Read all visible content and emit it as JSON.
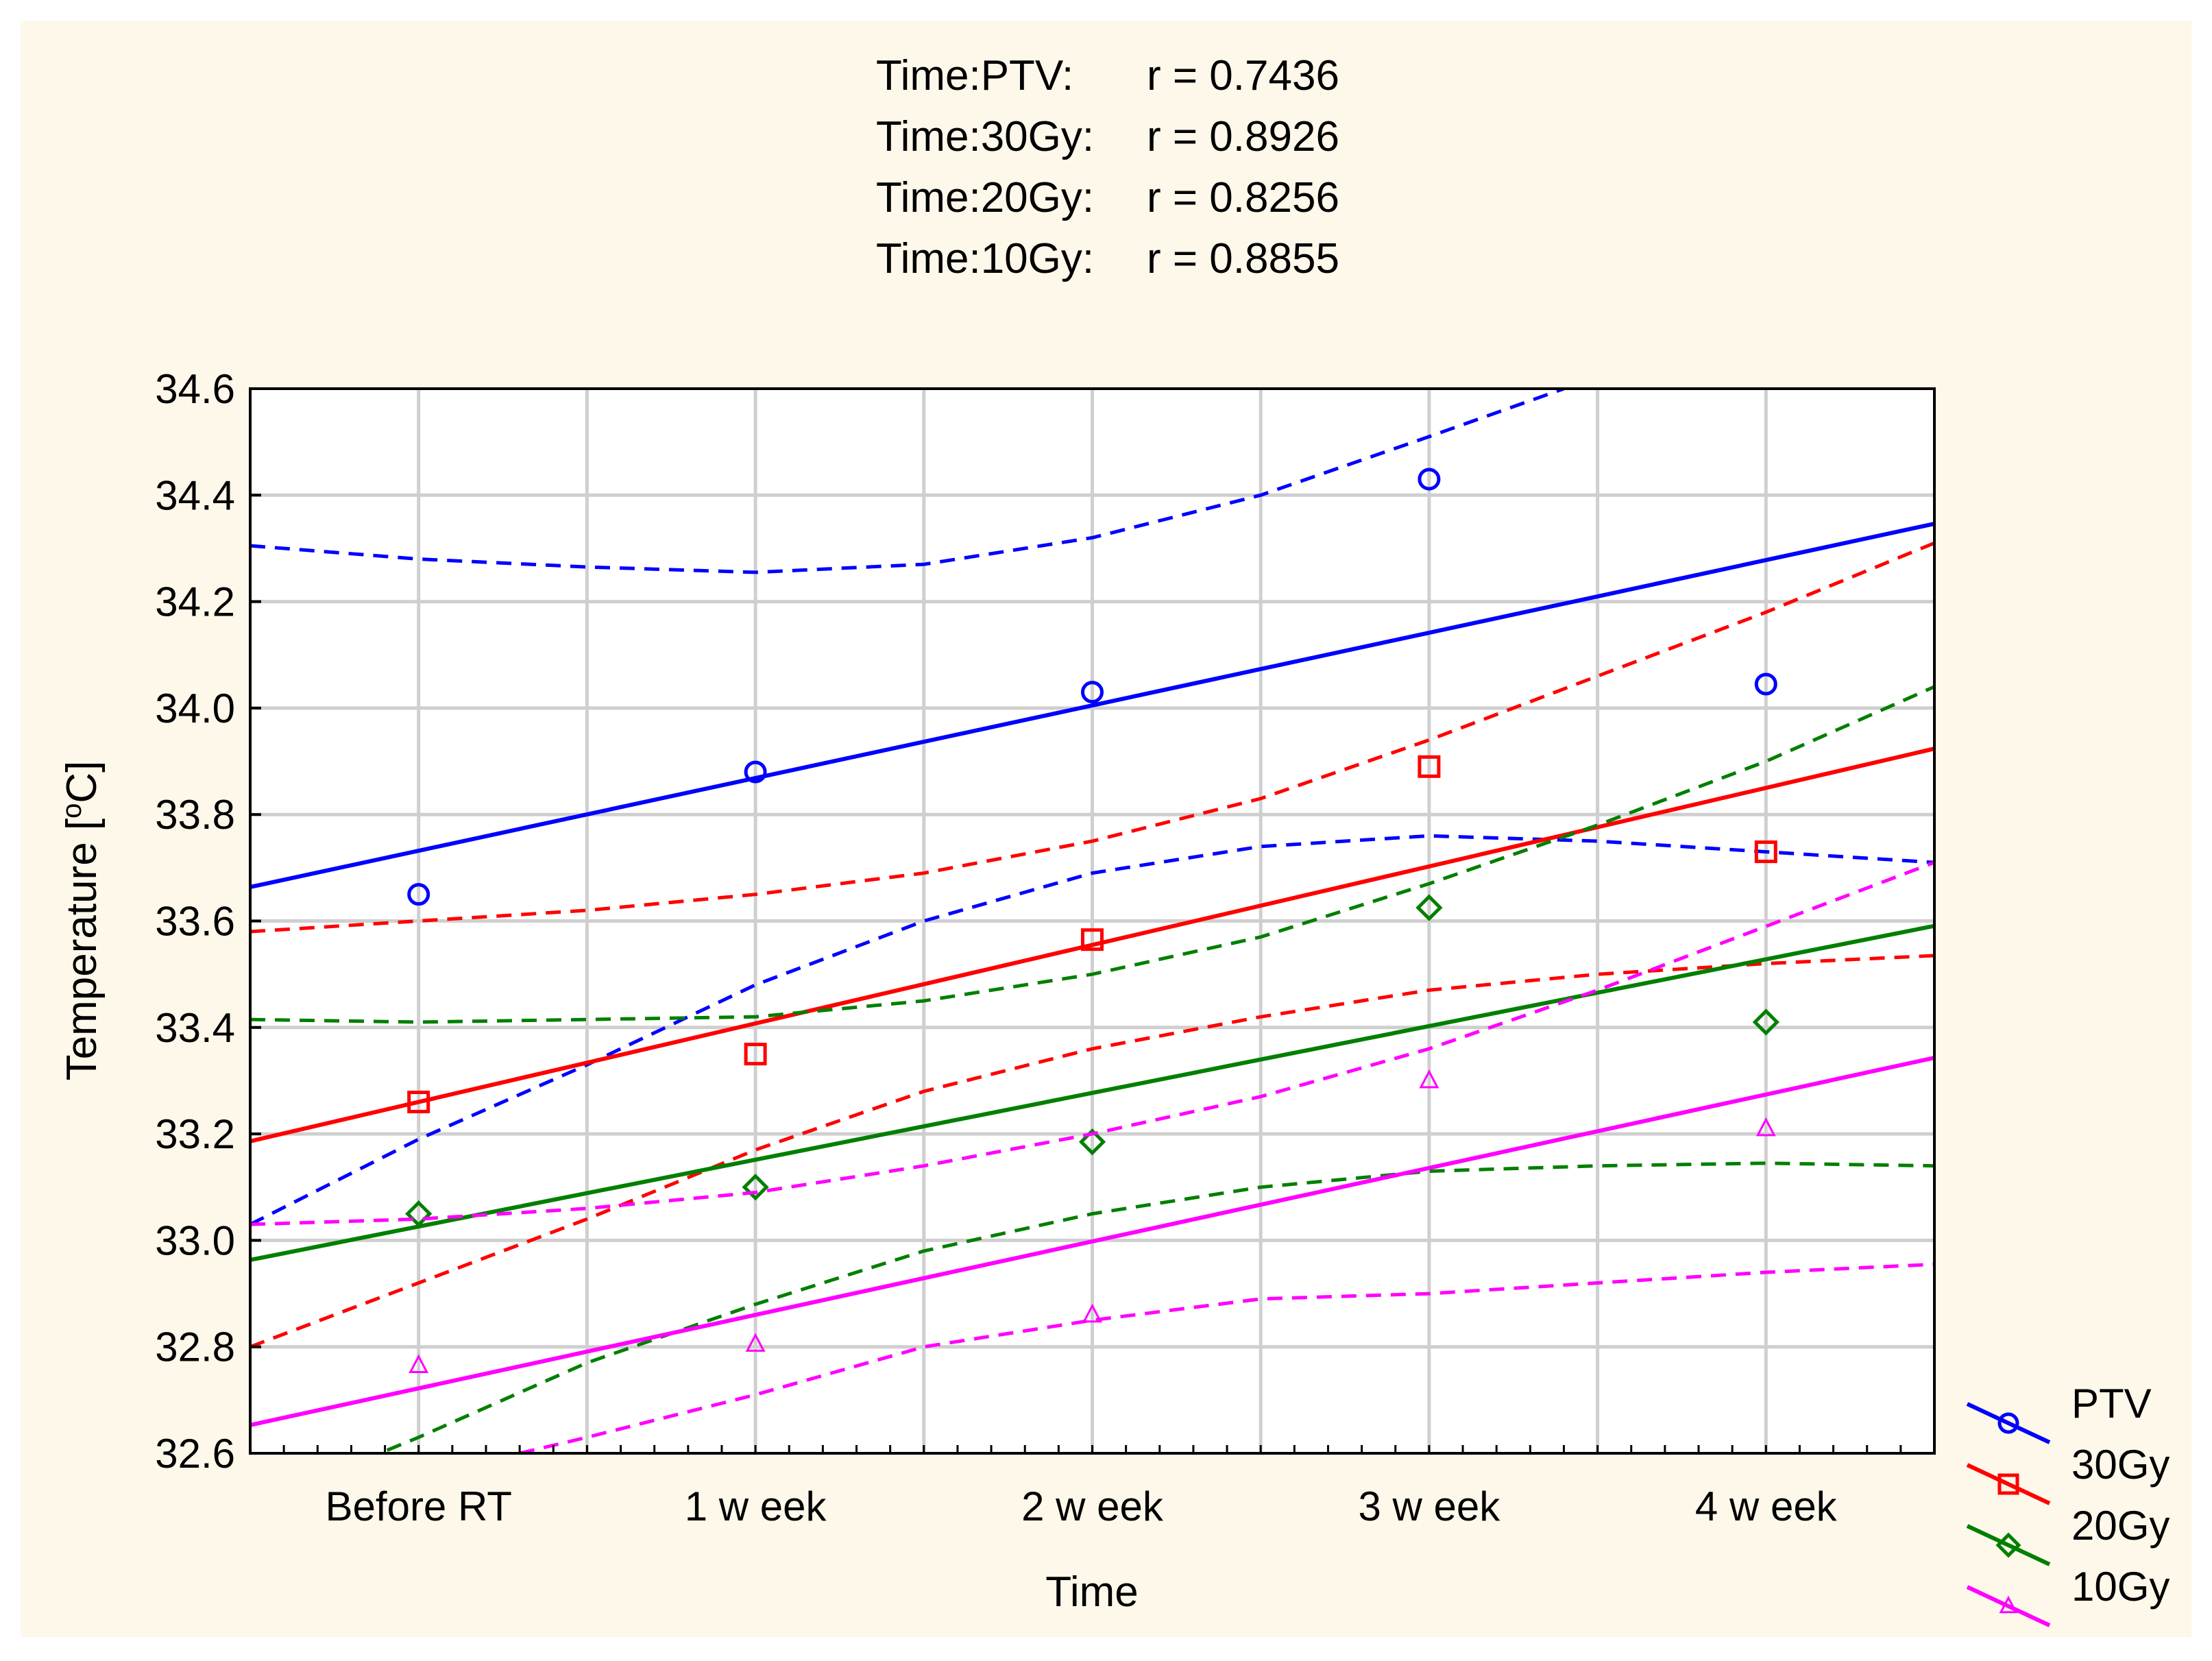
{
  "chart_data": {
    "type": "scatter",
    "title": "",
    "xlabel": "Time",
    "ylabel": "Temperature [°C]",
    "ylabel_parts": {
      "prefix": "Temperature [",
      "superscript": "o",
      "suffix": "C]"
    },
    "categories": [
      "Before RT",
      "1 w eek",
      "2 w eek",
      "3 w eek",
      "4 w eek"
    ],
    "ylim": [
      32.6,
      34.6
    ],
    "yticks": [
      "32.6",
      "32.8",
      "33.0",
      "33.2",
      "33.4",
      "33.6",
      "33.8",
      "34.0",
      "34.2",
      "34.4",
      "34.6"
    ],
    "xlim": [
      0.5,
      5.5
    ],
    "grid": true,
    "legend_position": "bottom-right",
    "annotations": [
      {
        "label": "Time:PTV:",
        "value": "r = 0.7436"
      },
      {
        "label": "Time:30Gy:",
        "value": "r = 0.8926"
      },
      {
        "label": "Time:20Gy:",
        "value": "r = 0.8256"
      },
      {
        "label": "Time:10Gy:",
        "value": "r = 0.8855"
      }
    ],
    "series": [
      {
        "name": "PTV",
        "color": "#0000ff",
        "marker": "circle",
        "values": [
          33.65,
          33.88,
          34.03,
          34.43,
          34.045
        ],
        "fit": {
          "intercept": 33.5955,
          "slope": 0.1365
        },
        "ci_lower": [
          [
            0.5,
            33.03
          ],
          [
            1.0,
            33.19
          ],
          [
            1.5,
            33.33
          ],
          [
            2.0,
            33.48
          ],
          [
            2.5,
            33.6
          ],
          [
            3.0,
            33.69
          ],
          [
            3.5,
            33.74
          ],
          [
            4.0,
            33.76
          ],
          [
            4.5,
            33.75
          ],
          [
            5.0,
            33.73
          ],
          [
            5.5,
            33.71
          ]
        ],
        "ci_upper": [
          [
            0.5,
            34.305
          ],
          [
            1.0,
            34.28
          ],
          [
            1.5,
            34.265
          ],
          [
            2.0,
            34.255
          ],
          [
            2.5,
            34.27
          ],
          [
            3.0,
            34.32
          ],
          [
            3.5,
            34.4
          ],
          [
            4.0,
            34.51
          ],
          [
            4.4,
            34.6
          ]
        ]
      },
      {
        "name": "30Gy",
        "color": "#ff0000",
        "marker": "square",
        "values": [
          33.26,
          33.35,
          33.565,
          33.89,
          33.73
        ],
        "fit": {
          "intercept": 33.1125,
          "slope": 0.1475
        },
        "ci_lower": [
          [
            0.5,
            32.8
          ],
          [
            1.0,
            32.92
          ],
          [
            1.5,
            33.04
          ],
          [
            2.0,
            33.17
          ],
          [
            2.5,
            33.28
          ],
          [
            3.0,
            33.36
          ],
          [
            3.5,
            33.42
          ],
          [
            4.0,
            33.47
          ],
          [
            4.5,
            33.5
          ],
          [
            5.0,
            33.52
          ],
          [
            5.5,
            33.535
          ]
        ],
        "ci_upper": [
          [
            0.5,
            33.58
          ],
          [
            1.0,
            33.6
          ],
          [
            1.5,
            33.62
          ],
          [
            2.0,
            33.65
          ],
          [
            2.5,
            33.69
          ],
          [
            3.0,
            33.75
          ],
          [
            3.5,
            33.83
          ],
          [
            4.0,
            33.94
          ],
          [
            4.5,
            34.06
          ],
          [
            5.0,
            34.18
          ],
          [
            5.5,
            34.31
          ]
        ]
      },
      {
        "name": "20Gy",
        "color": "#007f00",
        "marker": "diamond",
        "values": [
          33.05,
          33.1,
          33.185,
          33.625,
          33.41
        ],
        "fit": {
          "intercept": 32.9005,
          "slope": 0.1255
        },
        "ci_lower": [
          [
            0.5,
            32.5
          ],
          [
            1.0,
            32.63
          ],
          [
            1.5,
            32.77
          ],
          [
            2.0,
            32.88
          ],
          [
            2.5,
            32.98
          ],
          [
            3.0,
            33.05
          ],
          [
            3.5,
            33.1
          ],
          [
            4.0,
            33.13
          ],
          [
            4.5,
            33.14
          ],
          [
            5.0,
            33.145
          ],
          [
            5.5,
            33.14
          ]
        ],
        "ci_upper": [
          [
            0.5,
            33.415
          ],
          [
            1.0,
            33.41
          ],
          [
            1.5,
            33.415
          ],
          [
            2.0,
            33.42
          ],
          [
            2.5,
            33.45
          ],
          [
            3.0,
            33.5
          ],
          [
            3.5,
            33.57
          ],
          [
            4.0,
            33.67
          ],
          [
            4.5,
            33.78
          ],
          [
            5.0,
            33.9
          ],
          [
            5.5,
            34.04
          ]
        ]
      },
      {
        "name": "10Gy",
        "color": "#ff00ff",
        "marker": "triangle",
        "values": [
          32.765,
          32.805,
          32.86,
          33.3,
          33.21
        ],
        "fit": {
          "intercept": 32.584,
          "slope": 0.138
        },
        "ci_lower": [
          [
            1.3,
            32.6
          ],
          [
            1.5,
            32.63
          ],
          [
            2.0,
            32.71
          ],
          [
            2.5,
            32.8
          ],
          [
            3.0,
            32.85
          ],
          [
            3.5,
            32.89
          ],
          [
            4.0,
            32.9
          ],
          [
            4.5,
            32.92
          ],
          [
            5.0,
            32.94
          ],
          [
            5.5,
            32.955
          ]
        ],
        "ci_upper": [
          [
            0.5,
            33.03
          ],
          [
            1.0,
            33.04
          ],
          [
            1.5,
            33.06
          ],
          [
            2.0,
            33.09
          ],
          [
            2.5,
            33.14
          ],
          [
            3.0,
            33.2
          ],
          [
            3.5,
            33.27
          ],
          [
            4.0,
            33.36
          ],
          [
            4.5,
            33.47
          ],
          [
            5.0,
            33.59
          ],
          [
            5.5,
            33.71
          ]
        ]
      }
    ]
  }
}
